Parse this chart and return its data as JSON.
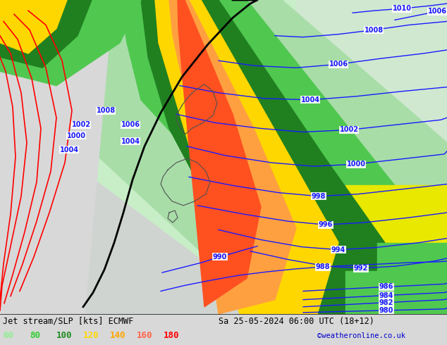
{
  "title_left": "Jet stream/SLP [kts] ECMWF",
  "title_right": "Sa 25-05-2024 06:00 UTC (18+12)",
  "credit": "©weatheronline.co.uk",
  "legend_values": [
    "60",
    "80",
    "100",
    "120",
    "140",
    "160",
    "180"
  ],
  "legend_colors": [
    "#90ee90",
    "#32cd32",
    "#228b22",
    "#ffd700",
    "#ffa500",
    "#ff6347",
    "#ff0000"
  ],
  "bg_color": "#d8d8d8",
  "slp_color": "#1a1aff",
  "red_line_color": "#ff0000",
  "black_line_color": "#000000",
  "font_size_title": 8.5,
  "font_size_legend": 9,
  "font_size_slp": 7,
  "fig_width": 6.34,
  "fig_height": 4.9,
  "dpi": 100
}
